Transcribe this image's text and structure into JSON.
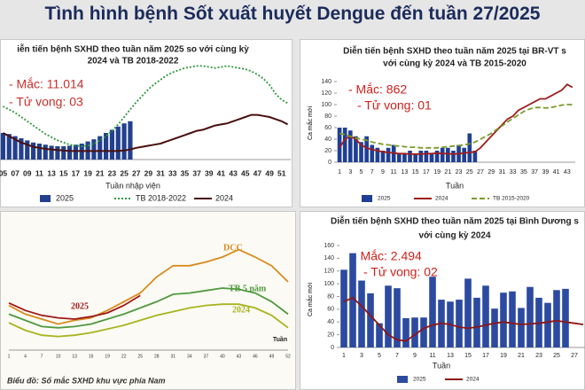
{
  "title": "Tình hình bệnh Sốt xuất huyết Dengue đến tuần 27/2025",
  "chart_data": [
    {
      "type": "combo",
      "title": [
        "iễn tiến bệnh SXHD theo tuần năm 2025 so với cùng kỳ",
        "2024 và TB 2018-2022"
      ],
      "annotations": [
        "- Mắc: 11.014",
        "- Tử vong: 03"
      ],
      "annotation_color": "#c9302c",
      "xlabel": "Tuần nhập viện",
      "ylim": [
        0,
        1000
      ],
      "categories": [
        "05",
        null,
        "07",
        null,
        "09",
        null,
        "11",
        null,
        "13",
        null,
        "15",
        null,
        "17",
        null,
        "19",
        null,
        "21",
        null,
        "23",
        null,
        "25",
        null,
        "27",
        null,
        "29",
        null,
        "31",
        null,
        "33",
        null,
        "35",
        null,
        "37",
        null,
        "39",
        null,
        "41",
        null,
        "43",
        null,
        "45",
        null,
        "47",
        null,
        "49",
        null,
        "51",
        null
      ],
      "series": [
        {
          "name": "2025",
          "kind": "bar",
          "color": "#23408e",
          "values": [
            250,
            240,
            220,
            200,
            180,
            160,
            150,
            140,
            130,
            125,
            125,
            130,
            140,
            150,
            170,
            190,
            220,
            250,
            280,
            310,
            340,
            360,
            null,
            null,
            null,
            null,
            null,
            null,
            null,
            null,
            null,
            null,
            null,
            null,
            null,
            null,
            null,
            null,
            null,
            null,
            null,
            null,
            null,
            null,
            null,
            null,
            null,
            null
          ]
        },
        {
          "name": "TB 2018-2022",
          "kind": "line",
          "dash": "dotted",
          "color": "#2e9a3a",
          "values": [
            500,
            470,
            440,
            400,
            360,
            320,
            280,
            240,
            210,
            180,
            160,
            140,
            130,
            125,
            130,
            150,
            180,
            220,
            270,
            330,
            400,
            470,
            540,
            600,
            660,
            710,
            750,
            790,
            820,
            840,
            860,
            870,
            880,
            880,
            870,
            860,
            870,
            880,
            870,
            860,
            850,
            830,
            800,
            760,
            700,
            620,
            560,
            530
          ]
        },
        {
          "name": "2024",
          "kind": "line",
          "color": "#4a0f0f",
          "values": [
            250,
            220,
            190,
            160,
            140,
            120,
            110,
            100,
            95,
            90,
            85,
            80,
            80,
            80,
            80,
            80,
            80,
            80,
            80,
            80,
            85,
            95,
            110,
            120,
            130,
            140,
            150,
            170,
            190,
            210,
            230,
            250,
            270,
            280,
            300,
            320,
            330,
            340,
            360,
            380,
            400,
            420,
            420,
            410,
            400,
            380,
            360,
            330
          ]
        }
      ]
    },
    {
      "type": "combo",
      "title": [
        "Diễn tiến bệnh SXHD theo tuần năm 2025 tại BR-VT s",
        "với cùng kỳ 2024 và TB 2015-2020"
      ],
      "annotations": [
        "- Mắc: 862",
        "- Tử vong: 01"
      ],
      "annotation_color": "#d0211c",
      "xlabel": "Tuần",
      "ylabel": "Ca mắc mới",
      "ylim": [
        0,
        140
      ],
      "yticks": [
        0,
        20,
        40,
        60,
        80,
        100,
        120,
        140
      ],
      "categories": [
        "1",
        null,
        "3",
        null,
        "5",
        null,
        "7",
        null,
        "9",
        null,
        "11",
        null,
        "13",
        null,
        "15",
        null,
        "17",
        null,
        "19",
        null,
        "21",
        null,
        "23",
        null,
        "25",
        null,
        "27",
        null,
        "29",
        null,
        "31",
        null,
        "33",
        null,
        "35",
        null,
        "37",
        null,
        "39",
        null,
        "41",
        null,
        "43",
        null
      ],
      "series": [
        {
          "name": "2025",
          "kind": "bar",
          "color": "#1f3f94",
          "values": [
            60,
            60,
            55,
            45,
            35,
            45,
            30,
            25,
            20,
            25,
            30,
            15,
            15,
            20,
            15,
            20,
            20,
            15,
            20,
            25,
            25,
            20,
            30,
            25,
            50,
            20,
            null,
            null,
            null,
            null,
            null,
            null,
            null,
            null,
            null,
            null,
            null,
            null,
            null,
            null,
            null,
            null,
            null,
            null
          ]
        },
        {
          "name": "2024",
          "kind": "line",
          "color": "#a01c1c",
          "values": [
            25,
            40,
            45,
            40,
            30,
            25,
            22,
            20,
            18,
            17,
            16,
            15,
            15,
            14,
            14,
            14,
            15,
            15,
            16,
            15,
            15,
            14,
            15,
            16,
            17,
            18,
            25,
            35,
            45,
            55,
            65,
            75,
            80,
            90,
            95,
            100,
            105,
            110,
            110,
            115,
            120,
            125,
            135,
            130
          ]
        },
        {
          "name": "TB 2015-2020",
          "kind": "line",
          "dash": "dashed",
          "color": "#7a9a2a",
          "values": [
            50,
            48,
            45,
            42,
            40,
            38,
            35,
            33,
            31,
            30,
            29,
            28,
            27,
            26,
            26,
            25,
            25,
            25,
            25,
            26,
            27,
            28,
            29,
            30,
            32,
            35,
            40,
            45,
            50,
            57,
            63,
            70,
            76,
            82,
            88,
            92,
            95,
            95,
            94,
            95,
            97,
            99,
            100,
            100
          ]
        }
      ]
    },
    {
      "type": "line",
      "caption": "Biểu đồ: Số mắc SXHD khu vực phía Nam",
      "xlabel": "Tuần",
      "legend": "inline",
      "xlim": [
        1,
        52
      ],
      "ylim": [
        0,
        100
      ],
      "x": [
        1,
        4,
        7,
        10,
        13,
        16,
        19,
        22,
        25,
        28,
        31,
        34,
        37,
        40,
        43,
        46,
        49,
        52
      ],
      "series": [
        {
          "name": "DCC",
          "kind": "line",
          "color": "#d98b1e",
          "values": [
            36,
            29,
            25,
            21,
            24,
            26,
            32,
            39,
            46,
            59,
            68,
            68,
            71,
            75,
            81,
            75,
            68,
            55
          ]
        },
        {
          "name": "TB 5 năm",
          "kind": "line",
          "color": "#4f9a3f",
          "values": [
            29,
            24,
            19,
            18,
            19,
            21,
            25,
            29,
            34,
            39,
            45,
            46,
            48,
            50,
            49,
            46,
            39,
            29
          ]
        },
        {
          "name": "2024",
          "kind": "line",
          "color": "#a8b41e",
          "values": [
            22,
            16,
            12,
            11,
            12,
            14,
            17,
            20,
            24,
            28,
            31,
            34,
            36,
            37,
            37,
            34,
            28,
            18
          ]
        },
        {
          "name": "2025",
          "kind": "line",
          "color": "#a01818",
          "values": [
            38,
            32,
            28,
            26,
            25,
            27,
            30,
            36,
            44,
            null,
            null,
            null,
            null,
            null,
            null,
            null,
            null,
            null
          ]
        }
      ]
    },
    {
      "type": "combo",
      "title": [
        "Diễn tiến bệnh SXHD theo tuần năm 2025 tại Bình Dương s",
        "với cùng kỳ 2024"
      ],
      "annotations": [
        "- Mắc: 2.494",
        "- Tử vong: 02"
      ],
      "annotation_color": "#d0211c",
      "xlabel": "Tuần",
      "ylabel": "Ca mắc mới",
      "ylim": [
        0,
        160
      ],
      "yticks": [
        0,
        20,
        40,
        60,
        80,
        100,
        120,
        140,
        160
      ],
      "categories": [
        "1",
        null,
        "3",
        null,
        "5",
        null,
        "7",
        null,
        "9",
        null,
        "11",
        null,
        "13",
        null,
        "15",
        null,
        "17",
        null,
        "19",
        null,
        "21",
        null,
        "23",
        null,
        "25",
        null,
        "27",
        null
      ],
      "series": [
        {
          "name": "2025",
          "kind": "bar",
          "color": "#2c4aa0",
          "values": [
            122,
            148,
            105,
            85,
            38,
            97,
            93,
            46,
            47,
            47,
            111,
            75,
            72,
            75,
            108,
            78,
            97,
            61,
            86,
            88,
            62,
            95,
            78,
            70,
            90,
            92,
            null,
            null
          ]
        },
        {
          "name": "2024",
          "kind": "line",
          "color": "#8e1616",
          "values": [
            72,
            78,
            65,
            50,
            35,
            20,
            12,
            10,
            20,
            30,
            35,
            38,
            36,
            32,
            30,
            32,
            35,
            38,
            40,
            38,
            36,
            37,
            38,
            40,
            42,
            40,
            38,
            36
          ]
        }
      ]
    }
  ]
}
